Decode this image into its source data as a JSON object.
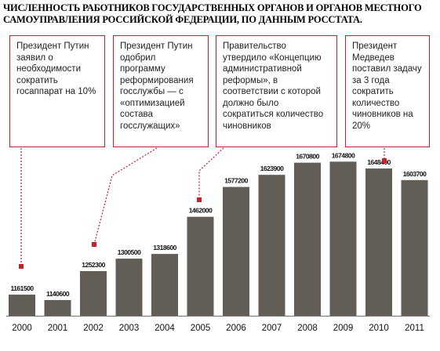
{
  "title": "Численность работников государственных органов и органов местного самоуправления Российской Федерации, по данным Росстата.",
  "chart_data": {
    "type": "bar",
    "title": "Численность работников государственных органов и органов местного самоуправления Российской Федерации, по данным Росстата.",
    "categories": [
      "2000",
      "2001",
      "2002",
      "2003",
      "2004",
      "2005",
      "2006",
      "2007",
      "2008",
      "2009",
      "2010",
      "2011"
    ],
    "values": [
      1161500,
      1140600,
      1252300,
      1300500,
      1318600,
      1462000,
      1577200,
      1623900,
      1670800,
      1674800,
      1648400,
      1603700
    ],
    "value_labels": [
      "1161500",
      "1140600",
      "1252300",
      "1300500",
      "1318600",
      "1462000",
      "1577200",
      "1623900",
      "1670800",
      "1674800",
      "1648400",
      "1603700"
    ],
    "xlabel": "",
    "ylabel": "",
    "ylim": [
      1080000,
      1700000
    ],
    "grid": false,
    "legend": "none",
    "bar_color": "#635d58",
    "annotation_color": "#c8202a"
  },
  "annotations": [
    {
      "year": "2000",
      "text": "Президент Путин заявил о необходимости сократить госаппарат на 10%"
    },
    {
      "year": "2002",
      "text": "Президент Путин одобрил программу реформирования госслужбы — с «оптимизацией состава госслужащих»"
    },
    {
      "year": "2005",
      "text": "Правительство утвердило «Концепцию административной реформы», в соответствии с которой должно было сократиться количество чиновников"
    },
    {
      "year": "2010",
      "text": "Президент Медведев поставил задачу за 3 года сократить количество чиновников на 20%"
    }
  ]
}
